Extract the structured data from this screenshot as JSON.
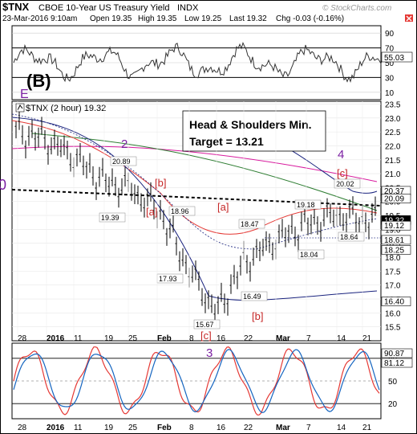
{
  "header": {
    "symbol": "$TNX",
    "name": "CBOE 10-Year US Treasury Yield",
    "exchange": "INDX",
    "date": "23-Mar-2016 9:10am",
    "open": "Open 19.35",
    "high": "High 19.35",
    "low": "Low 19.25",
    "last": "Last 19.32",
    "chg": "Chg -0.03 (-0.16%)",
    "logo": "© StockCharts.com"
  },
  "colors": {
    "price": "#000000",
    "rsi": "#333333",
    "ma_green": "#2e7d32",
    "ma_magenta": "#d81b9e",
    "ma_red": "#e53935",
    "bollinger": "#1a237e",
    "dotted": "#1a237e",
    "wave_purple": "#7b1fa2",
    "wave_red": "#c62828",
    "stoch_red": "#e53935",
    "stoch_blue": "#1565c0"
  },
  "rsi_panel": {
    "label": "(B)",
    "wave_e": "E",
    "ticks": [
      "90",
      "70",
      "50",
      "30",
      "10"
    ],
    "current": "55.03",
    "ylim": [
      0,
      100
    ]
  },
  "main_panel": {
    "series_label": "$TNX (2 hour) 19.32",
    "annotation_line1": "Head & Shoulders Min.",
    "annotation_line2": "Target = 13.21",
    "left_edge_label": "0",
    "ylim": [
      15.0,
      23.6
    ],
    "price_ticks": [
      "23.5",
      "23.0",
      "22.5",
      "22.0",
      "21.5",
      "21.0",
      "20.5",
      "20.0",
      "19.5",
      "19.0",
      "18.5",
      "18.0",
      "17.5",
      "17.0",
      "16.5",
      "16.0",
      "15.5"
    ],
    "right_labels": [
      "20.37",
      "20.09",
      "19.32",
      "19.12",
      "18.61",
      "18.25",
      "16.40"
    ],
    "wave_labels": [
      "2",
      "1",
      "4",
      "[c]",
      "[b]",
      "[a]",
      "[a]",
      "[b]",
      "[c]",
      "3"
    ],
    "value_labels": [
      "20.89",
      "19.39",
      "18.96",
      "17.93",
      "18.47",
      "15.67",
      "16.49",
      "19.18",
      "20.02",
      "18.04",
      "18.64"
    ]
  },
  "x_axis": {
    "labels": [
      "28",
      "2016",
      "11",
      "19",
      "25",
      "Feb",
      "8",
      "16",
      "22",
      "Mar",
      "7",
      "14",
      "21"
    ]
  },
  "stoch_panel": {
    "ticks": [
      "80",
      "50",
      "20"
    ],
    "current1": "90.87",
    "current2": "81.12",
    "ylim": [
      0,
      100
    ]
  },
  "chart_data": {
    "type": "line",
    "title": "$TNX CBOE 10-Year US Treasury Yield INDX",
    "x": [
      "28",
      "2016",
      "11",
      "19",
      "25",
      "Feb",
      "8",
      "16",
      "22",
      "Mar",
      "7",
      "14",
      "21"
    ],
    "series": [
      {
        "name": "$TNX (2 hour)",
        "values": [
          22.5,
          22.2,
          21.6,
          20.7,
          20.5,
          19.6,
          17.5,
          16.0,
          17.8,
          18.6,
          19.2,
          19.5,
          19.32
        ]
      }
    ],
    "ylim": [
      15.0,
      23.6
    ]
  }
}
